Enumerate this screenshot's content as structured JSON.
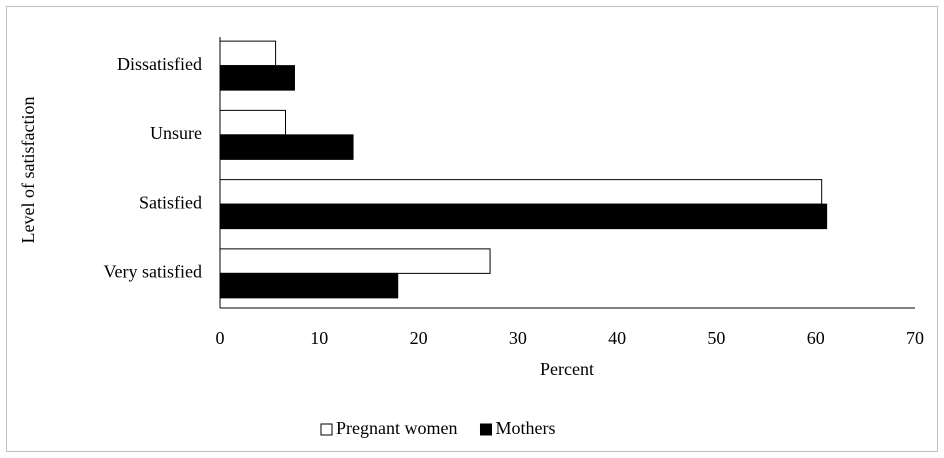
{
  "chart_data": {
    "type": "hbar",
    "ylabel": "Level of satisfaction",
    "xlabel": "Percent",
    "categories": [
      "Dissatisfied",
      "Unsure",
      "Satisfied",
      "Very satisfied"
    ],
    "series": [
      {
        "name": "Pregnant women",
        "color": "#ffffff",
        "values": [
          5.6,
          6.6,
          60.6,
          27.2
        ]
      },
      {
        "name": "Mothers",
        "color": "#000000",
        "values": [
          7.5,
          13.4,
          61.1,
          17.9
        ]
      }
    ],
    "xlim": [
      0,
      70
    ],
    "xticks": [
      0,
      10,
      20,
      30,
      40,
      50,
      60,
      70
    ]
  }
}
